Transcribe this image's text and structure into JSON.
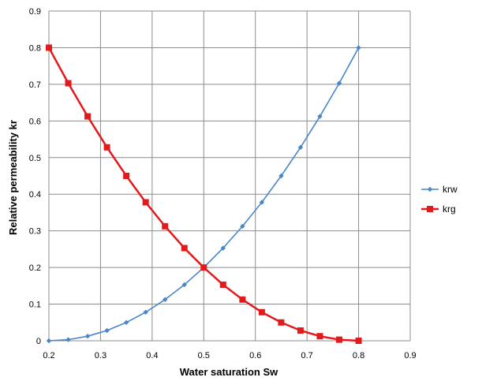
{
  "chart_data": {
    "type": "line",
    "title": "",
    "xlabel": "Water saturation Sw",
    "ylabel": "Relative permeability kr",
    "xlim": [
      0.2,
      0.9
    ],
    "ylim": [
      0,
      0.9
    ],
    "x_ticks": [
      "0.2",
      "0.3",
      "0.4",
      "0.5",
      "0.6",
      "0.7",
      "0.8",
      "0.9"
    ],
    "y_ticks": [
      "0",
      "0.1",
      "0.2",
      "0.3",
      "0.4",
      "0.5",
      "0.6",
      "0.7",
      "0.8",
      "0.9"
    ],
    "grid": true,
    "legend_position": "right",
    "x": [
      0.2,
      0.2375,
      0.275,
      0.3125,
      0.35,
      0.3875,
      0.425,
      0.4625,
      0.5,
      0.5375,
      0.575,
      0.6125,
      0.65,
      0.6875,
      0.725,
      0.7625,
      0.8
    ],
    "series": [
      {
        "name": "krw",
        "color": "#4a86c8",
        "marker": "diamond",
        "values": [
          0.0,
          0.003,
          0.0125,
          0.028,
          0.05,
          0.078,
          0.1125,
          0.153,
          0.2,
          0.253,
          0.3125,
          0.378,
          0.45,
          0.528,
          0.6125,
          0.703,
          0.8
        ]
      },
      {
        "name": "krg",
        "color": "#e31a1c",
        "marker": "square",
        "values": [
          0.8,
          0.703,
          0.6125,
          0.528,
          0.45,
          0.378,
          0.3125,
          0.253,
          0.2,
          0.153,
          0.1125,
          0.078,
          0.05,
          0.028,
          0.0125,
          0.003,
          0.0
        ]
      }
    ]
  }
}
